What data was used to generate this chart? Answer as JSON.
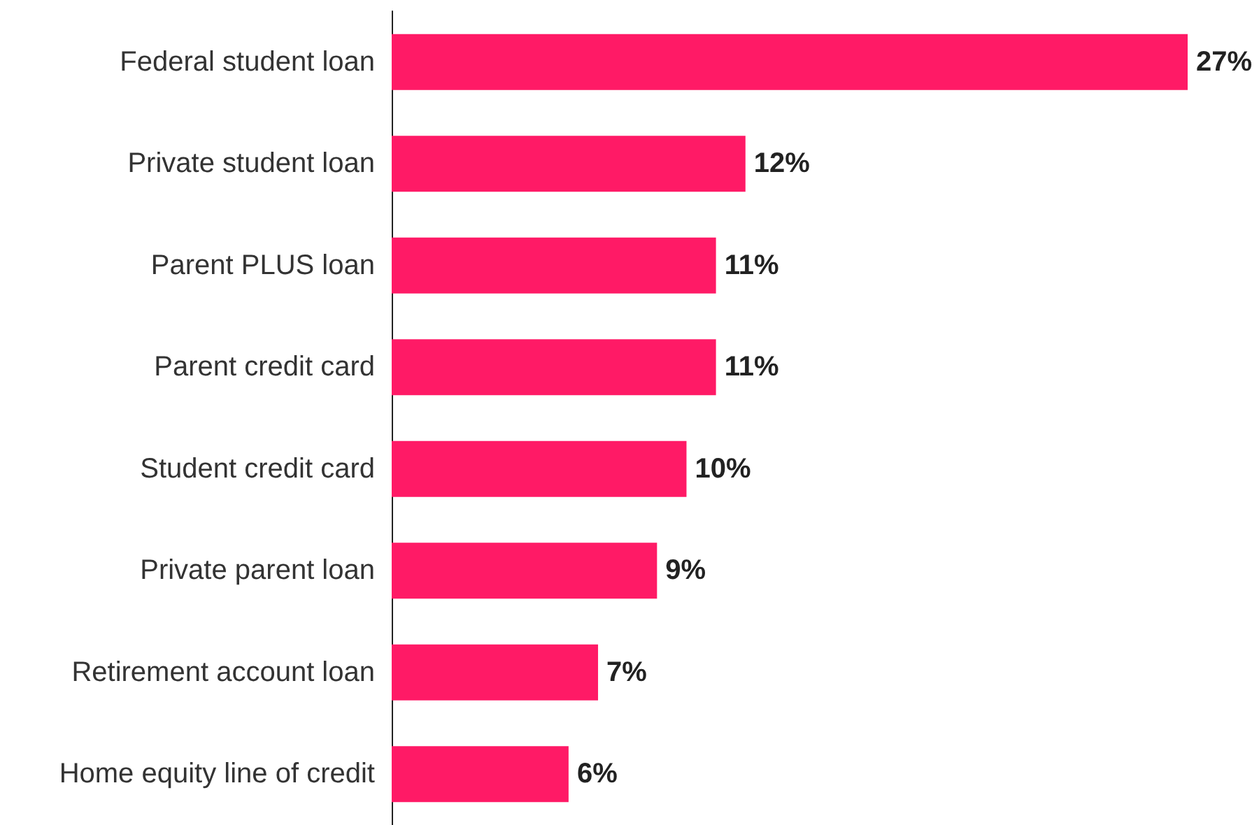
{
  "chart_data": {
    "type": "bar",
    "orientation": "horizontal",
    "categories": [
      "Federal student loan",
      "Private student loan",
      "Parent PLUS loan",
      "Parent credit card",
      "Student credit card",
      "Private parent loan",
      "Retirement account loan",
      "Home equity line of credit"
    ],
    "values": [
      27,
      12,
      11,
      11,
      10,
      9,
      7,
      6
    ],
    "value_labels": [
      "27%",
      "12%",
      "11%",
      "11%",
      "10%",
      "9%",
      "7%",
      "6%"
    ],
    "color": "#ff1a66"
  }
}
